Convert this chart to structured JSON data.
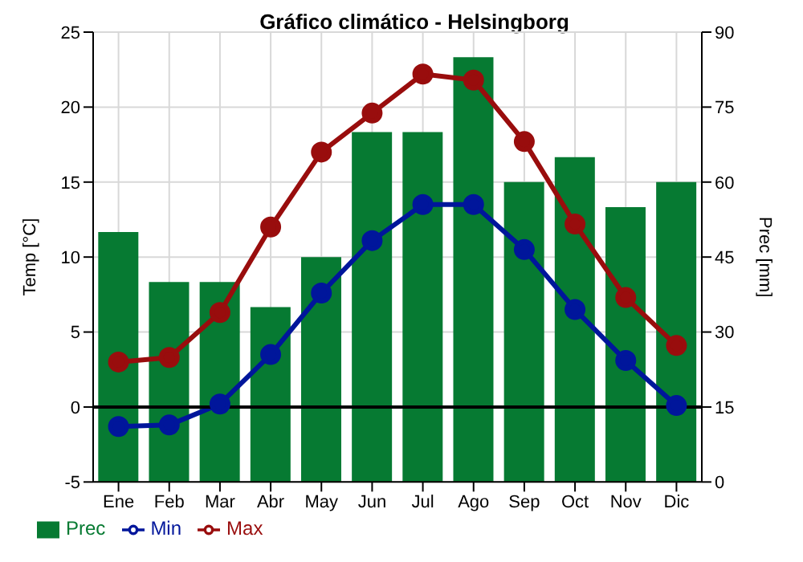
{
  "chart_data": {
    "type": "bar",
    "title": "Gráfico climático - Helsingborg",
    "ylabel": "Temp [°C]",
    "y2label": "Prec [mm]",
    "categories": [
      "Ene",
      "Feb",
      "Mar",
      "Abr",
      "May",
      "Jun",
      "Jul",
      "Ago",
      "Sep",
      "Oct",
      "Nov",
      "Dic"
    ],
    "series": [
      {
        "name": "Prec",
        "axis": "y2",
        "color": "#067a32",
        "values": [
          50,
          40,
          40,
          35,
          45,
          70,
          70,
          85,
          60,
          65,
          55,
          60
        ]
      },
      {
        "name": "Min",
        "type": "line",
        "color": "#00169b",
        "values": [
          -1.3,
          -1.2,
          0.2,
          3.5,
          7.6,
          11.1,
          13.5,
          13.5,
          10.5,
          6.5,
          3.1,
          0.1
        ]
      },
      {
        "name": "Max",
        "type": "line",
        "color": "#990d0d",
        "values": [
          3,
          3.3,
          6.3,
          12,
          17,
          19.6,
          22.2,
          21.8,
          17.7,
          12.2,
          7.3,
          4.1
        ]
      }
    ],
    "ylim": [
      -5,
      25
    ],
    "yticks": [
      -5,
      0,
      5,
      10,
      15,
      20,
      25
    ],
    "y2lim": [
      0,
      90
    ],
    "y2ticks": [
      0,
      15,
      30,
      45,
      60,
      75,
      90
    ],
    "ref_lines": [
      {
        "axis": "y",
        "value": 0,
        "color": "#000000"
      }
    ],
    "grid": true,
    "legend": "bottom left",
    "marker": "circle",
    "line_style": "solid"
  }
}
